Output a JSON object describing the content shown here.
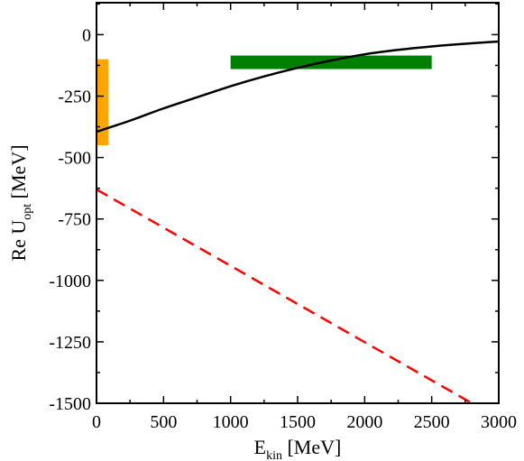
{
  "chart_data": {
    "type": "line",
    "xlabel": {
      "main": "E",
      "sub": "kin",
      "unit": " [MeV]"
    },
    "ylabel": {
      "main": "Re U",
      "sub": "opt",
      "unit": " [MeV]"
    },
    "xlim": [
      0,
      3000
    ],
    "ylim": [
      -1500,
      130
    ],
    "xticks": [
      0,
      500,
      1000,
      1500,
      2000,
      2500,
      3000
    ],
    "yticks": [
      0,
      -250,
      -500,
      -750,
      -1000,
      -1250,
      -1500
    ],
    "xtick_labels": [
      "0",
      "500",
      "1000",
      "1500",
      "2000",
      "2500",
      "3000"
    ],
    "ytick_labels": [
      "0",
      "-250",
      "-500",
      "-750",
      "-1000",
      "-1250",
      "-1500"
    ],
    "grid": false,
    "series": [
      {
        "style": "solid",
        "color": "#000000",
        "x": [
          0,
          250,
          500,
          750,
          1000,
          1250,
          1500,
          1750,
          2000,
          2250,
          2500,
          2750,
          3000
        ],
        "y": [
          -395,
          -350,
          -300,
          -255,
          -210,
          -170,
          -135,
          -105,
          -80,
          -62,
          -48,
          -37,
          -28
        ]
      },
      {
        "style": "dashed",
        "color": "#ff0000",
        "x": [
          0,
          2800
        ],
        "y": [
          -630,
          -1500
        ]
      }
    ],
    "bands": [
      {
        "color": "#ffa500",
        "x": [
          0,
          90
        ],
        "y": [
          -450,
          -100
        ]
      },
      {
        "color": "#008000",
        "x": [
          1000,
          2500
        ],
        "y": [
          -140,
          -85
        ]
      }
    ]
  }
}
